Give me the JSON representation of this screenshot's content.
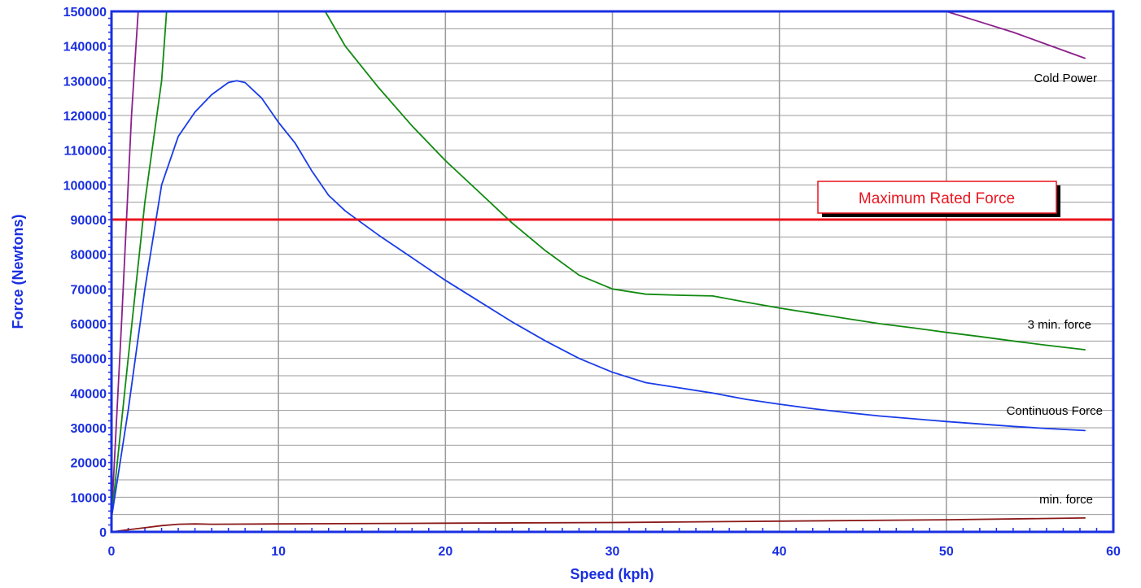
{
  "chart_data": {
    "type": "line",
    "title": "",
    "xlabel": "Speed  (kph)",
    "ylabel": "Force  (Newtons)",
    "xlim": [
      0,
      60
    ],
    "ylim": [
      0,
      150000
    ],
    "x_ticks": [
      0,
      10,
      20,
      30,
      40,
      50,
      60
    ],
    "y_ticks": [
      0,
      10000,
      20000,
      30000,
      40000,
      50000,
      60000,
      70000,
      80000,
      90000,
      100000,
      110000,
      120000,
      130000,
      140000,
      150000
    ],
    "grid": true,
    "legend": "none",
    "colors": {
      "axis": "#1a2fe0",
      "grid": "#9a9a9a",
      "background": "#ffffff",
      "annotation_box_border": "#e8141e",
      "annotation_box_fill": "#ffffff"
    },
    "series": [
      {
        "name": "Cold Power",
        "color": "#8b1f8c",
        "points": [
          [
            0,
            4000
          ],
          [
            0.6,
            60000
          ],
          [
            1.2,
            120000
          ],
          [
            1.6,
            150000
          ],
          [
            50,
            150000
          ],
          [
            52,
            147000
          ],
          [
            54,
            144000
          ],
          [
            56,
            140500
          ],
          [
            58.3,
            136500
          ]
        ]
      },
      {
        "name": "3 min. force",
        "color": "#118a11",
        "points": [
          [
            0,
            4000
          ],
          [
            1,
            50000
          ],
          [
            2,
            95000
          ],
          [
            3,
            130000
          ],
          [
            3.3,
            150000
          ],
          [
            12.8,
            150000
          ],
          [
            14,
            140000
          ],
          [
            16,
            128000
          ],
          [
            18,
            117000
          ],
          [
            20,
            107000
          ],
          [
            22,
            98000
          ],
          [
            24,
            89000
          ],
          [
            26,
            81000
          ],
          [
            28,
            74000
          ],
          [
            30,
            70000
          ],
          [
            32,
            68500
          ],
          [
            34,
            68200
          ],
          [
            36,
            68000
          ],
          [
            38,
            66200
          ],
          [
            40,
            64500
          ],
          [
            42,
            63000
          ],
          [
            44,
            61500
          ],
          [
            46,
            60000
          ],
          [
            48,
            58800
          ],
          [
            50,
            57500
          ],
          [
            52,
            56300
          ],
          [
            54,
            55000
          ],
          [
            56,
            53800
          ],
          [
            58.3,
            52500
          ]
        ]
      },
      {
        "name": "Continuous Force",
        "color": "#1a3ce8",
        "points": [
          [
            0,
            4000
          ],
          [
            1,
            35000
          ],
          [
            2,
            70000
          ],
          [
            3,
            100000
          ],
          [
            4,
            114000
          ],
          [
            5,
            121000
          ],
          [
            6,
            126000
          ],
          [
            7,
            129500
          ],
          [
            7.5,
            130000
          ],
          [
            8,
            129500
          ],
          [
            9,
            125000
          ],
          [
            10,
            118000
          ],
          [
            11,
            112000
          ],
          [
            12,
            104000
          ],
          [
            13,
            97000
          ],
          [
            14,
            92500
          ],
          [
            15,
            89000
          ],
          [
            16,
            85500
          ],
          [
            18,
            79000
          ],
          [
            20,
            72500
          ],
          [
            22,
            66500
          ],
          [
            24,
            60500
          ],
          [
            26,
            55000
          ],
          [
            28,
            50000
          ],
          [
            30,
            46000
          ],
          [
            32,
            43000
          ],
          [
            34,
            41500
          ],
          [
            36,
            40000
          ],
          [
            38,
            38200
          ],
          [
            40,
            36800
          ],
          [
            42,
            35500
          ],
          [
            44,
            34400
          ],
          [
            46,
            33400
          ],
          [
            48,
            32600
          ],
          [
            50,
            31800
          ],
          [
            52,
            31100
          ],
          [
            54,
            30400
          ],
          [
            56,
            29800
          ],
          [
            58.3,
            29200
          ]
        ]
      },
      {
        "name": "min. force",
        "color": "#8b1a1a",
        "points": [
          [
            0,
            0
          ],
          [
            1,
            600
          ],
          [
            2,
            1200
          ],
          [
            3,
            1800
          ],
          [
            4,
            2200
          ],
          [
            5,
            2300
          ],
          [
            6,
            2200
          ],
          [
            10,
            2300
          ],
          [
            20,
            2500
          ],
          [
            30,
            2700
          ],
          [
            40,
            3100
          ],
          [
            50,
            3500
          ],
          [
            58.3,
            4000
          ]
        ]
      }
    ],
    "reference_lines": [
      {
        "label": "Maximum Rated Force",
        "y": 90000,
        "color": "#e8141e"
      }
    ]
  }
}
